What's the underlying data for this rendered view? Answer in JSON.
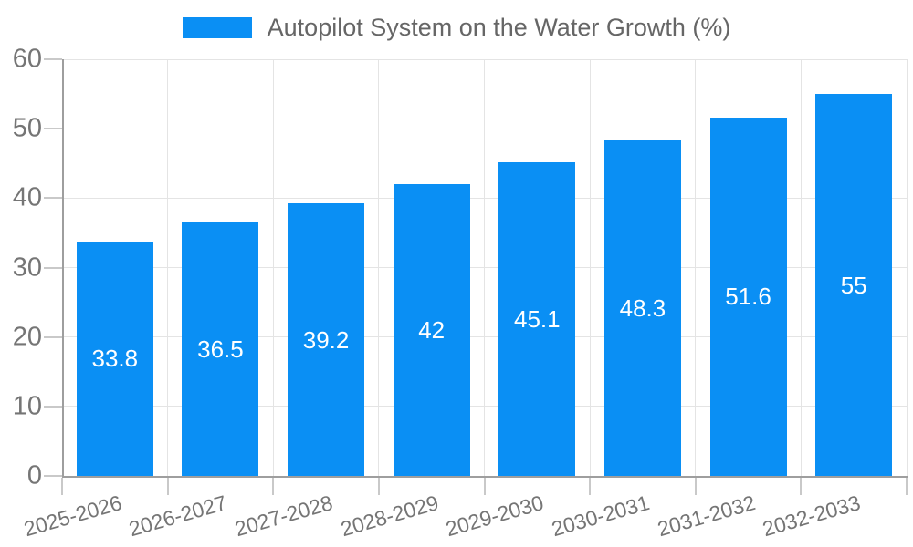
{
  "chart_data": {
    "type": "bar",
    "title": "Autopilot System on the Water Growth (%)",
    "legend": {
      "label": "Autopilot System on the Water Growth (%)",
      "position": "top-center"
    },
    "categories": [
      "2025-2026",
      "2026-2027",
      "2027-2028",
      "2028-2029",
      "2029-2030",
      "2030-2031",
      "2031-2032",
      "2032-2033"
    ],
    "series": [
      {
        "name": "Autopilot System on the Water Growth (%)",
        "values": [
          33.8,
          36.5,
          39.2,
          42,
          45.1,
          48.3,
          51.6,
          55
        ]
      }
    ],
    "xlabel": "",
    "ylabel": "",
    "ylim": [
      0,
      60
    ],
    "yticks": [
      0,
      10,
      20,
      30,
      40,
      50,
      60
    ],
    "grid": true,
    "value_labels_shown": true,
    "colors": {
      "bar": "#0a8ff4",
      "value_label": "#ffffff",
      "grid": "#e4e4e4",
      "tick": "#c9c9c9",
      "axis": "#9e9e9e",
      "tick_label": "#757575",
      "legend_text": "#666666",
      "background": "#ffffff"
    }
  }
}
